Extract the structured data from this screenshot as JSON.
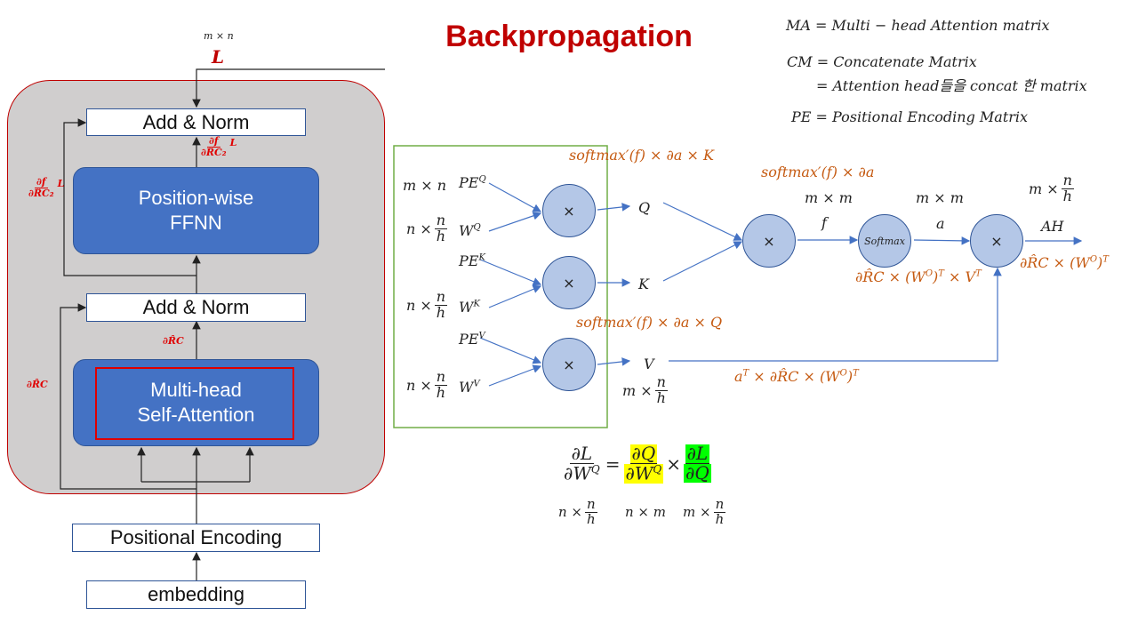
{
  "title": "Backpropagation",
  "legend": {
    "ma": "MA = Multi − head Attention matrix",
    "cm1": "CM = Concatenate Matrix",
    "cm2": "= Attention head들을 concat 한 matrix",
    "pe": "PE = Positional Encoding Matrix"
  },
  "encoder": {
    "output_dim": "m × n",
    "loss": "L",
    "add_norm_top": "Add & Norm",
    "ffnn": [
      "Position-wise",
      "FFNN"
    ],
    "add_norm_mid": "Add & Norm",
    "mha": [
      "Multi-head",
      "Self-Attention"
    ],
    "positional_encoding": "Positional Encoding",
    "embedding": "embedding",
    "grad_f_num": "∂f",
    "grad_f_den": "∂R̂C₂",
    "grad_f_suffix": "L",
    "grad_rc": "∂R̂C"
  },
  "attention": {
    "pe_q": "PEQ",
    "pe_k": "PEK",
    "pe_v": "PEV",
    "w_q": "WQ",
    "w_k": "WK",
    "w_v": "WV",
    "dim_mn": "m × n",
    "dim_n_over_h": "n ×",
    "frac_n": "n",
    "frac_h": "h",
    "times": "×",
    "q": "Q",
    "k": "K",
    "v": "V",
    "v_dim": "m ×",
    "grad_q": "softmax′(f) × ∂a × K",
    "grad_k": "softmax′(f) × ∂a × Q",
    "grad_f": "softmax′(f) × ∂a",
    "dim_mm_1": "m × m",
    "f": "f",
    "softmax": "Softmax",
    "dim_mm_2": "m × m",
    "a": "a",
    "ah_dim": "m ×",
    "ah": "AH",
    "grad_a": "∂R̂C × (WO)T × VT",
    "grad_ah": "∂R̂C × (WO)T",
    "grad_v": "aT × ∂R̂C × (WO)T"
  },
  "equation": {
    "lhs_num": "∂L",
    "lhs_den": "∂WQ",
    "eq": "=",
    "mid_num": "∂Q",
    "mid_den": "∂WQ",
    "times": "×",
    "rhs_num": "∂L",
    "rhs_den": "∂Q",
    "dim1": "n ×",
    "dim2": "n × m",
    "dim3": "m ×",
    "frac_n": "n",
    "frac_h": "h"
  }
}
